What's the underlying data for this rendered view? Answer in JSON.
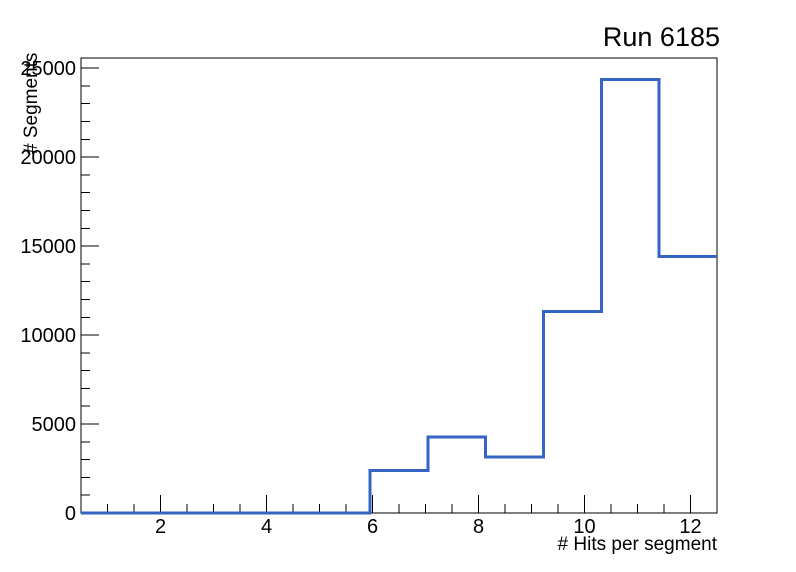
{
  "window": {
    "background_color": "#ffffff"
  },
  "chart_data": {
    "type": "histogram",
    "title": "Run 6185",
    "xlabel": "# Hits per segment",
    "ylabel": "# Segments",
    "xlim": [
      0.5,
      12.5
    ],
    "ylim": [
      0,
      25570
    ],
    "bin_edges": [
      0.5,
      1.5909,
      2.6818,
      3.7727,
      4.8636,
      5.9545,
      7.0455,
      8.1364,
      9.2273,
      10.3182,
      11.4091,
      12.5
    ],
    "counts": [
      0,
      0,
      0,
      0,
      0,
      2400,
      4270,
      3150,
      11320,
      24350,
      14420
    ],
    "x_major_ticks": [
      2,
      4,
      6,
      8,
      10,
      12
    ],
    "x_tick_labels": [
      "2",
      "4",
      "6",
      "8",
      "10",
      "12"
    ],
    "x_minor_step": 0.5,
    "y_major_ticks": [
      0,
      5000,
      10000,
      15000,
      20000,
      25000
    ],
    "y_tick_labels": [
      "0",
      "5000",
      "10000",
      "15000",
      "20000",
      "25000"
    ],
    "y_minor_step": 1000,
    "grid": false,
    "legend": "none",
    "line_color": "#3565c2",
    "axis_color": "#000000",
    "text_color": "#000000"
  }
}
